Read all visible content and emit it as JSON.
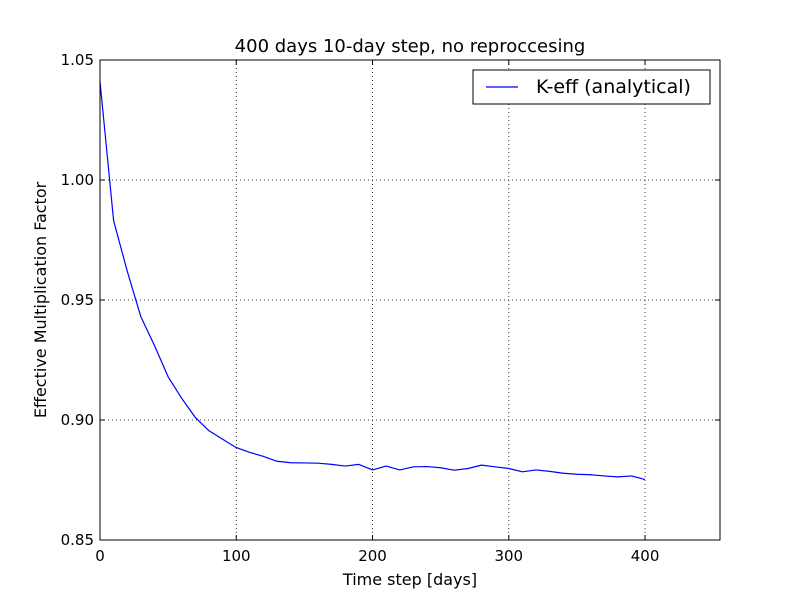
{
  "chart_data": {
    "type": "line",
    "title": "400 days 10-day step, no reproccesing",
    "xlabel": "Time step [days]",
    "ylabel": "Effective Multiplication Factor",
    "xlim": [
      0,
      455
    ],
    "ylim": [
      0.85,
      1.05
    ],
    "xticks": [
      0,
      100,
      200,
      300,
      400
    ],
    "xtick_labels": [
      "0",
      "100",
      "200",
      "300",
      "400"
    ],
    "yticks": [
      0.85,
      0.9,
      0.95,
      1.0,
      1.05
    ],
    "ytick_labels": [
      "0.85",
      "0.90",
      "0.95",
      "1.00",
      "1.05"
    ],
    "grid": true,
    "legend_position": "top-right",
    "series": [
      {
        "name": "K-eff (analytical)",
        "color": "#0000ff",
        "x": [
          0,
          10,
          20,
          30,
          40,
          50,
          60,
          70,
          80,
          90,
          100,
          110,
          120,
          130,
          140,
          150,
          160,
          170,
          180,
          190,
          200,
          210,
          220,
          230,
          240,
          250,
          260,
          270,
          280,
          290,
          300,
          310,
          320,
          330,
          340,
          350,
          360,
          370,
          380,
          390,
          400
        ],
        "y": [
          1.041,
          0.983,
          0.962,
          0.943,
          0.931,
          0.918,
          0.909,
          0.901,
          0.8955,
          0.892,
          0.8885,
          0.8865,
          0.8848,
          0.8828,
          0.8822,
          0.8821,
          0.882,
          0.8815,
          0.8808,
          0.8815,
          0.8792,
          0.8808,
          0.8792,
          0.8805,
          0.8806,
          0.8801,
          0.8791,
          0.8798,
          0.8812,
          0.8805,
          0.8798,
          0.8784,
          0.8792,
          0.8786,
          0.8778,
          0.8774,
          0.8772,
          0.8767,
          0.8763,
          0.8767,
          0.8752
        ]
      }
    ]
  }
}
